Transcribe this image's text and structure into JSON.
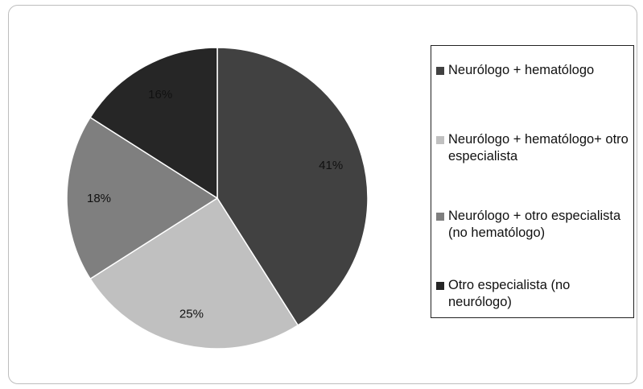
{
  "chart_data": {
    "type": "pie",
    "categories": [
      "Neurólogo + hematólogo",
      "Neurólogo + hematólogo+ otro especialista",
      "Neurólogo + otro especialista (no hematólogo)",
      "Otro especialista (no neurólogo)"
    ],
    "values": [
      41,
      25,
      18,
      16
    ],
    "labels": [
      "41%",
      "25%",
      "18%",
      "16%"
    ],
    "colors": [
      "#414141",
      "#c0c0c0",
      "#7f7f7f",
      "#262626"
    ],
    "start_angle_deg": 0,
    "direction": "clockwise",
    "legend": "right"
  },
  "legend": {
    "items": [
      {
        "label": "Neurólogo + hematólogo",
        "color": "#414141"
      },
      {
        "label": "Neurólogo + hematólogo+ otro especialista",
        "color": "#c0c0c0"
      },
      {
        "label": "Neurólogo + otro especialista (no hematólogo)",
        "color": "#7f7f7f"
      },
      {
        "label": "Otro especialista (no neurólogo)",
        "color": "#262626"
      }
    ]
  }
}
